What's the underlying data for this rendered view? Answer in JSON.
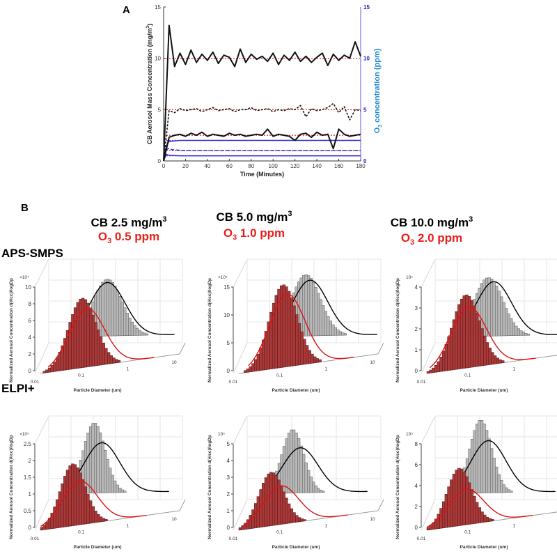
{
  "chart_data": [
    {
      "panel": "A",
      "type": "line",
      "xlabel": "Time (Minutes)",
      "ylabel": {
        "text": "CB Aerosol Mass Concentration (mg/m",
        "sup": "3",
        "tail": ")"
      },
      "y2label": {
        "pre": "O",
        "sub": "3",
        "text": " concentration (ppm)"
      },
      "xlim": [
        0,
        180
      ],
      "ylim": [
        0,
        15
      ],
      "y2lim": [
        0,
        15
      ],
      "xticks": [
        "0",
        "20",
        "40",
        "60",
        "80",
        "100",
        "120",
        "140",
        "160",
        "180"
      ],
      "yticks": [
        "0",
        "5",
        "10",
        "15"
      ],
      "y2ticks": [
        "0",
        "5",
        "10",
        "15"
      ],
      "x_step_minutes": 5,
      "cb_series": [
        {
          "name": "CB 10.0 mg/m3",
          "target": 10,
          "style": "solid",
          "values": [
            0,
            13.2,
            9.2,
            10.5,
            9.4,
            10.8,
            9.6,
            10.4,
            9.8,
            10.6,
            9.5,
            10.3,
            10.1,
            9.2,
            10.9,
            9.6,
            10.4,
            9.9,
            10.2,
            9.7,
            10.5,
            9.4,
            10.3,
            9.8,
            10.6,
            9.7,
            10.2,
            9.6,
            10.1,
            10.5,
            9.3,
            10.4,
            9.8,
            10.3,
            10.0,
            11.6,
            10.2
          ]
        },
        {
          "name": "CB 5.0 mg/m3",
          "target": 5,
          "style": "dashed",
          "values": [
            0,
            4.9,
            4.7,
            5.1,
            4.9,
            5.0,
            5.1,
            4.8,
            5.0,
            5.2,
            4.9,
            5.0,
            5.1,
            4.8,
            5.0,
            5.0,
            5.2,
            4.9,
            5.0,
            5.1,
            4.8,
            5.0,
            4.9,
            5.1,
            5.0,
            5.4,
            4.3,
            5.1,
            4.9,
            5.0,
            5.2,
            5.6,
            4.7,
            5.3,
            4.0,
            5.0,
            4.9
          ]
        },
        {
          "name": "CB 2.5 mg/m3",
          "target": 2.5,
          "style": "solid",
          "values": [
            0,
            2.3,
            2.5,
            2.6,
            2.4,
            2.7,
            2.5,
            2.8,
            2.4,
            2.6,
            2.5,
            2.4,
            2.7,
            2.5,
            2.6,
            2.4,
            2.5,
            2.6,
            2.5,
            3.1,
            2.4,
            2.6,
            2.5,
            2.4,
            2.0,
            2.6,
            2.7,
            2.3,
            2.8,
            2.5,
            2.6,
            1.2,
            3.1,
            2.6,
            2.4,
            2.5,
            2.6
          ]
        }
      ],
      "o3_series": [
        {
          "name": "O3 2.0 ppm",
          "target": 2.0,
          "style": "solid",
          "startup": [
            0,
            1.5,
            1.9
          ]
        },
        {
          "name": "O3 1.0 ppm",
          "target": 1.0,
          "style": "dashed",
          "startup": [
            0,
            1.1,
            1.25,
            1.1
          ]
        },
        {
          "name": "O3 0.5 ppm",
          "target": 0.5,
          "style": "solid",
          "startup": [
            0,
            0.65,
            0.55
          ]
        }
      ],
      "colors": {
        "cb": "#111111",
        "target": "#e0201b",
        "o3": "#2a2ad0",
        "o3_target": "#b01aa0",
        "y2label": "#1f8ad0",
        "y2tick": "#2222bb"
      }
    },
    {
      "panel": "B",
      "type": "bar",
      "xlabel": "Particle Diameter (um)",
      "ylabel": "Normalized Aerosol Concentration d(#/cc)/logDp",
      "xticks": [
        "0.01",
        "0.1",
        "1",
        "10"
      ],
      "colors": {
        "back_hist": "#b8b8b8",
        "front_hist": "#a83a3a",
        "back_fit": "#000000",
        "front_fit": "#e01010"
      },
      "rows": [
        "APS-SMPS",
        "ELPI+"
      ],
      "columns": [
        {
          "cb": {
            "text": "CB 2.5 mg/m",
            "sup": "3"
          },
          "o3": {
            "pre": "O",
            "sub": "3",
            "text": " 0.5 ppm"
          }
        },
        {
          "cb": {
            "text": "CB 5.0 mg/m",
            "sup": "3"
          },
          "o3": {
            "pre": "O",
            "sub": "3",
            "text": " 1.0 ppm"
          }
        },
        {
          "cb": {
            "text": "CB 10.0 mg/m",
            "sup": "3"
          },
          "o3": {
            "pre": "O",
            "sub": "3",
            "text": " 2.0 ppm"
          }
        }
      ],
      "panels": [
        {
          "row": 0,
          "col": 0,
          "multiplier": "×10⁴",
          "yticks": [
            "0",
            "2",
            "4",
            "6",
            "8",
            "10"
          ],
          "ymax": 10,
          "back": {
            "gmd": 0.2,
            "peak": 6.8,
            "width": 0.33
          },
          "front": {
            "gmd": 0.08,
            "peak": 8.3,
            "width": 0.3
          },
          "back_fit": {
            "gmd": 0.2,
            "peak": 6.4,
            "width": 0.4
          },
          "front_fit": {
            "gmd": 0.1,
            "peak": 7.0,
            "width": 0.38
          }
        },
        {
          "row": 0,
          "col": 1,
          "multiplier": "×10⁴",
          "yticks": [
            "0",
            "5",
            "10",
            "15"
          ],
          "ymax": 15,
          "back": {
            "gmd": 0.2,
            "peak": 11,
            "width": 0.33
          },
          "front": {
            "gmd": 0.09,
            "peak": 14.8,
            "width": 0.3
          },
          "back_fit": {
            "gmd": 0.25,
            "peak": 10,
            "width": 0.4
          },
          "front_fit": {
            "gmd": 0.11,
            "peak": 13,
            "width": 0.38
          }
        },
        {
          "row": 0,
          "col": 2,
          "multiplier": "10⁵",
          "yticks": [
            "0",
            "1",
            "2",
            "3",
            "4"
          ],
          "ymax": 4,
          "back": {
            "gmd": 0.15,
            "peak": 2.8,
            "width": 0.33
          },
          "front": {
            "gmd": 0.07,
            "peak": 3.5,
            "width": 0.3
          },
          "back_fit": {
            "gmd": 0.2,
            "peak": 2.6,
            "width": 0.4
          },
          "front_fit": {
            "gmd": 0.08,
            "peak": 2.9,
            "width": 0.38
          }
        },
        {
          "row": 1,
          "col": 0,
          "multiplier": "×10⁵",
          "yticks": [
            "0",
            "0.5",
            "1",
            "1.5",
            "2",
            "2.5"
          ],
          "ymax": 2.5,
          "back": {
            "gmd": 0.1,
            "peak": 2.1,
            "width": 0.25
          },
          "front": {
            "gmd": 0.05,
            "peak": 1.85,
            "width": 0.27
          },
          "back_fit": {
            "gmd": 0.15,
            "peak": 1.5,
            "width": 0.4
          },
          "front_fit": {
            "gmd": 0.07,
            "peak": 1.3,
            "width": 0.38
          }
        },
        {
          "row": 1,
          "col": 1,
          "multiplier": "10⁵",
          "yticks": [
            "0",
            "1",
            "2",
            "3",
            "4",
            "5"
          ],
          "ymax": 5,
          "back": {
            "gmd": 0.1,
            "peak": 3.8,
            "width": 0.25
          },
          "front": {
            "gmd": 0.05,
            "peak": 3.2,
            "width": 0.27
          },
          "back_fit": {
            "gmd": 0.15,
            "peak": 2.7,
            "width": 0.4
          },
          "front_fit": {
            "gmd": 0.08,
            "peak": 2.3,
            "width": 0.38
          }
        },
        {
          "row": 1,
          "col": 2,
          "multiplier": "10⁵",
          "yticks": [
            "0",
            "2",
            "4",
            "6",
            "8"
          ],
          "ymax": 8,
          "back": {
            "gmd": 0.1,
            "peak": 7.0,
            "width": 0.25
          },
          "front": {
            "gmd": 0.05,
            "peak": 5.5,
            "width": 0.27
          },
          "back_fit": {
            "gmd": 0.15,
            "peak": 5.0,
            "width": 0.4
          },
          "front_fit": {
            "gmd": 0.07,
            "peak": 3.4,
            "width": 0.38
          }
        }
      ]
    }
  ],
  "labels": {
    "panel_a": "A",
    "panel_b": "B"
  }
}
